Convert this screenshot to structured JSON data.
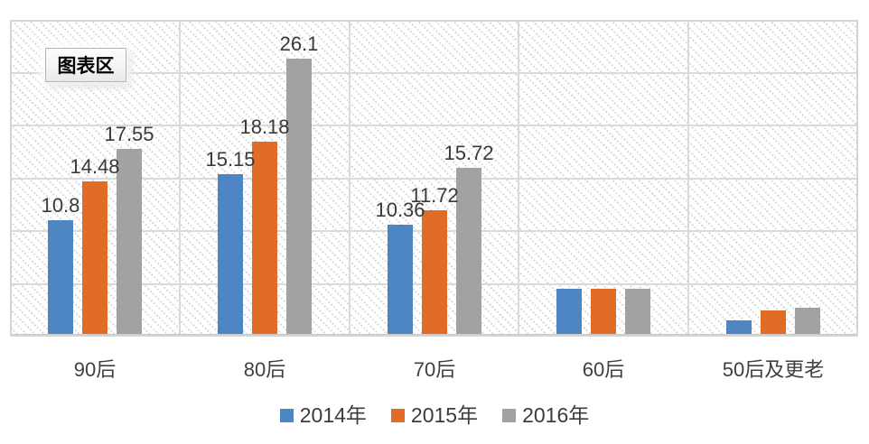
{
  "tooltip": {
    "label": "图表区"
  },
  "chart_data": {
    "type": "bar",
    "title": "",
    "categories": [
      "90后",
      "80后",
      "70后",
      "60后",
      "50后及更老"
    ],
    "series": [
      {
        "name": "2014年",
        "color": "#4E86C4",
        "values": [
          10.8,
          15.15,
          10.36,
          4.3,
          1.3
        ],
        "data_labels": [
          "10.8",
          "15.15",
          "10.36",
          "",
          ""
        ]
      },
      {
        "name": "2015年",
        "color": "#E16C26",
        "values": [
          14.48,
          18.18,
          11.72,
          4.3,
          2.2
        ],
        "data_labels": [
          "14.48",
          "18.18",
          "11.72",
          "",
          ""
        ]
      },
      {
        "name": "2016年",
        "color": "#A2A2A2",
        "values": [
          17.55,
          26.1,
          15.72,
          4.3,
          2.5
        ],
        "data_labels": [
          "17.55",
          "26.1",
          "15.72",
          "",
          ""
        ]
      }
    ],
    "ylim": [
      0,
      30
    ],
    "gridline_step": 5,
    "grid": true,
    "axis_labels_shown": false,
    "legend_position": "bottom",
    "colors": {
      "gridline": "#DADADA",
      "axis": "#C9C9C9",
      "plot_border": "#D4D4D4",
      "data_label_text": "#3A3A3A",
      "category_text": "#404040",
      "legend_text": "#3C3C3C"
    }
  }
}
